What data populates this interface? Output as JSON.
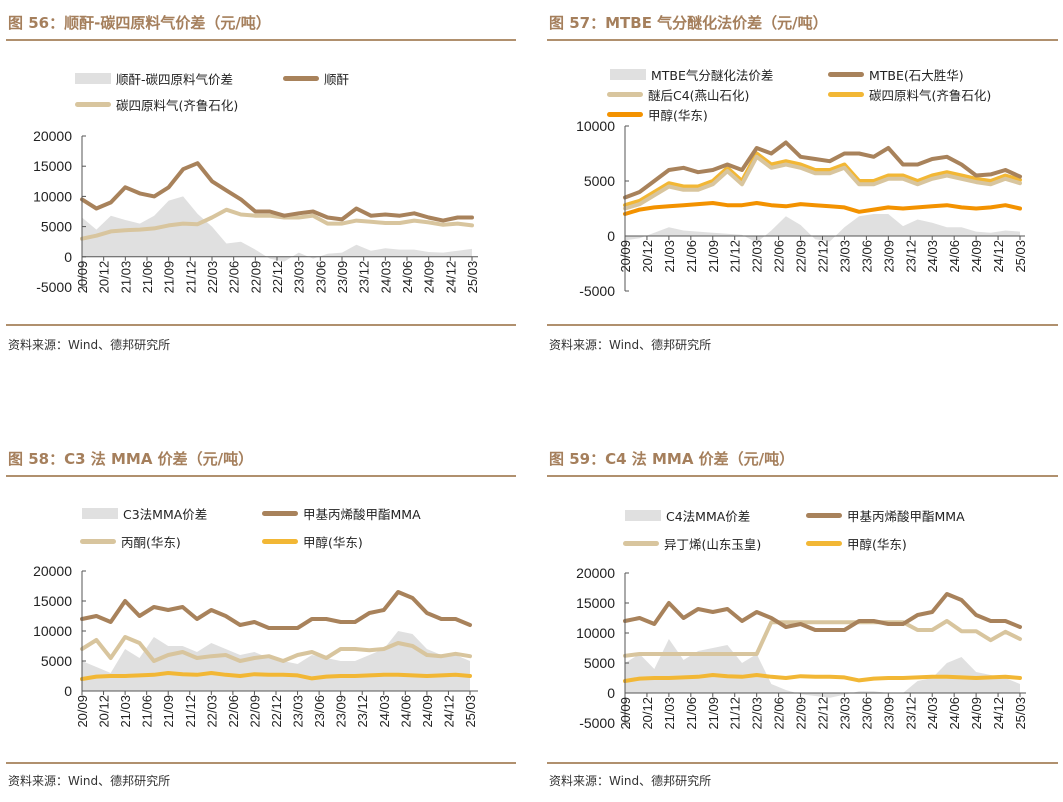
{
  "source_label": "资料来源：Wind、德邦研究所",
  "chart_data": [
    {
      "type": "line",
      "title": "图 56：顺酐-碳四原料气价差（元/吨）",
      "ylim": [
        -5000,
        20000
      ],
      "yticks": [
        "20000",
        "15000",
        "10000",
        "5000",
        "0",
        "-5000"
      ],
      "yvalues": [
        20000,
        15000,
        10000,
        5000,
        0,
        -5000
      ],
      "xticks": [
        "20/09",
        "20/12",
        "21/03",
        "21/06",
        "21/09",
        "21/12",
        "22/03",
        "22/06",
        "22/09",
        "22/12",
        "23/03",
        "23/06",
        "23/09",
        "23/12",
        "24/03",
        "24/06",
        "24/09",
        "24/12",
        "25/03"
      ],
      "x_step_months": 2,
      "series": [
        {
          "name": "顺酐-碳四原料气价差",
          "kind": "area",
          "color": "#e0e0e0",
          "values": [
            6500,
            4500,
            6800,
            6100,
            5500,
            6800,
            9300,
            10000,
            7100,
            5000,
            2200,
            2500,
            1200,
            -300,
            -800,
            700,
            -300,
            500,
            700,
            2000,
            1000,
            1400,
            1200,
            1200,
            800,
            700,
            1000,
            1300
          ]
        },
        {
          "name": "顺酐",
          "kind": "line",
          "color": "#a8825b",
          "values": [
            9500,
            8000,
            9000,
            11500,
            10500,
            10000,
            11500,
            14500,
            15500,
            12500,
            11000,
            9500,
            7500,
            7500,
            6800,
            7200,
            7500,
            6500,
            6200,
            8000,
            6800,
            7000,
            6800,
            7200,
            6500,
            6000,
            6500,
            6500
          ]
        },
        {
          "name": "碳四原料气(齐鲁石化)",
          "kind": "line",
          "color": "#d8c59e",
          "values": [
            3000,
            3500,
            4200,
            4400,
            4500,
            4700,
            5200,
            5500,
            5400,
            6500,
            7800,
            7000,
            6800,
            6800,
            6500,
            6500,
            6800,
            5500,
            5500,
            6000,
            5800,
            5600,
            5600,
            6000,
            5700,
            5300,
            5500,
            5200
          ]
        }
      ]
    },
    {
      "type": "line",
      "title": "图 57：MTBE 气分醚化法价差（元/吨）",
      "ylim": [
        -5000,
        10000
      ],
      "yticks": [
        "10000",
        "5000",
        "0",
        "-5000"
      ],
      "yvalues": [
        10000,
        5000,
        0,
        -5000
      ],
      "xticks": [
        "20/09",
        "20/12",
        "21/03",
        "21/06",
        "21/09",
        "21/12",
        "22/03",
        "22/06",
        "22/09",
        "22/12",
        "23/03",
        "23/06",
        "23/09",
        "23/12",
        "24/03",
        "24/06",
        "24/09",
        "24/12",
        "25/03"
      ],
      "x_step_months": 2,
      "series": [
        {
          "name": "MTBE气分醚化法价差",
          "kind": "area",
          "color": "#e0e0e0",
          "values": [
            -400,
            -200,
            300,
            800,
            500,
            400,
            300,
            200,
            100,
            -600,
            500,
            1800,
            1000,
            -300,
            -500,
            800,
            1800,
            2000,
            2000,
            900,
            1500,
            1200,
            800,
            800,
            400,
            300,
            500,
            400
          ]
        },
        {
          "name": "MTBE(石大胜华)",
          "kind": "line",
          "color": "#a8825b",
          "values": [
            3500,
            4000,
            5000,
            6000,
            6200,
            5800,
            6000,
            6500,
            6000,
            8000,
            7500,
            8500,
            7200,
            7000,
            6800,
            7500,
            7500,
            7200,
            8000,
            6500,
            6500,
            7000,
            7200,
            6500,
            5500,
            5600,
            6000,
            5400
          ]
        },
        {
          "name": "醚后C4(燕山石化)",
          "kind": "line",
          "color": "#d8c59e",
          "values": [
            2500,
            2900,
            3700,
            4500,
            4200,
            4200,
            4700,
            5900,
            4700,
            7200,
            6200,
            6500,
            6200,
            5700,
            5700,
            6200,
            4700,
            4700,
            5200,
            5200,
            4700,
            5200,
            5500,
            5200,
            4900,
            4700,
            5200,
            4800
          ]
        },
        {
          "name": "碳四原料气(齐鲁石化)",
          "kind": "line",
          "color": "#f2b735",
          "values": [
            2800,
            3200,
            4000,
            4800,
            4500,
            4500,
            5000,
            6200,
            5000,
            7500,
            6500,
            6800,
            6500,
            6000,
            6000,
            6500,
            5000,
            5000,
            5500,
            5500,
            5000,
            5500,
            5800,
            5500,
            5200,
            5000,
            5500,
            5100
          ]
        },
        {
          "name": "甲醇(华东)",
          "kind": "line",
          "color": "#f39200",
          "values": [
            2000,
            2400,
            2600,
            2700,
            2800,
            2900,
            3000,
            2800,
            2800,
            3000,
            2800,
            2700,
            2900,
            2800,
            2700,
            2600,
            2200,
            2400,
            2600,
            2500,
            2600,
            2700,
            2800,
            2600,
            2500,
            2600,
            2800,
            2500
          ]
        }
      ]
    },
    {
      "type": "line",
      "title": "图 58：C3 法 MMA 价差（元/吨）",
      "ylim": [
        0,
        20000
      ],
      "yticks": [
        "20000",
        "15000",
        "10000",
        "5000",
        "0"
      ],
      "yvalues": [
        20000,
        15000,
        10000,
        5000,
        0
      ],
      "xticks": [
        "20/09",
        "20/12",
        "21/03",
        "21/06",
        "21/09",
        "21/12",
        "22/03",
        "22/06",
        "22/09",
        "22/12",
        "23/03",
        "23/06",
        "23/09",
        "23/12",
        "24/03",
        "24/06",
        "24/09",
        "24/12",
        "25/03"
      ],
      "x_step_months": 2,
      "series": [
        {
          "name": "C3法MMA价差",
          "kind": "area",
          "color": "#e0e0e0",
          "values": [
            5000,
            4000,
            3000,
            7000,
            5500,
            9000,
            7500,
            7500,
            6500,
            8000,
            7000,
            6000,
            6500,
            5500,
            5000,
            4500,
            6000,
            5500,
            5000,
            5000,
            6000,
            7000,
            10000,
            9500,
            7000,
            6000,
            6000,
            5000
          ]
        },
        {
          "name": "甲基丙烯酸甲酯MMA",
          "kind": "line",
          "color": "#a8825b",
          "values": [
            12000,
            12500,
            11500,
            15000,
            12500,
            14000,
            13500,
            14000,
            12000,
            13500,
            12500,
            11000,
            11500,
            10500,
            10500,
            10500,
            12000,
            12000,
            11500,
            11500,
            13000,
            13500,
            16500,
            15500,
            13000,
            12000,
            12000,
            11000
          ]
        },
        {
          "name": "丙酮(华东)",
          "kind": "line",
          "color": "#d8c59e",
          "values": [
            7000,
            8500,
            5500,
            9000,
            8000,
            5000,
            6000,
            6500,
            5500,
            5800,
            6000,
            5000,
            5500,
            5800,
            5000,
            6000,
            6500,
            5500,
            7000,
            7000,
            6800,
            7000,
            8000,
            7500,
            6000,
            5800,
            6200,
            5800
          ]
        },
        {
          "name": "甲醇(华东)",
          "kind": "line",
          "color": "#f2b735",
          "values": [
            2000,
            2400,
            2500,
            2500,
            2600,
            2700,
            3000,
            2800,
            2700,
            3000,
            2700,
            2500,
            2800,
            2700,
            2700,
            2600,
            2100,
            2400,
            2500,
            2500,
            2600,
            2700,
            2700,
            2600,
            2500,
            2600,
            2700,
            2500
          ]
        }
      ]
    },
    {
      "type": "line",
      "title": "图 59：C4 法 MMA 价差（元/吨）",
      "ylim": [
        -5000,
        20000
      ],
      "yticks": [
        "20000",
        "15000",
        "10000",
        "5000",
        "0",
        "-5000"
      ],
      "yvalues": [
        20000,
        15000,
        10000,
        5000,
        0,
        -5000
      ],
      "xticks": [
        "20/09",
        "20/12",
        "21/03",
        "21/06",
        "21/09",
        "21/12",
        "22/03",
        "22/06",
        "22/09",
        "22/12",
        "23/03",
        "23/06",
        "23/09",
        "23/12",
        "24/03",
        "24/06",
        "24/09",
        "24/12",
        "25/03"
      ],
      "x_step_months": 2,
      "series": [
        {
          "name": "C4法MMA价差",
          "kind": "area",
          "color": "#e0e0e0",
          "values": [
            5000,
            6500,
            4000,
            9000,
            5500,
            7000,
            7500,
            8000,
            5000,
            6500,
            1500,
            500,
            -200,
            -500,
            -800,
            -300,
            300,
            300,
            0,
            0,
            2000,
            2500,
            5000,
            6000,
            3500,
            3000,
            2500,
            1500
          ]
        },
        {
          "name": "甲基丙烯酸甲酯MMA",
          "kind": "line",
          "color": "#a8825b",
          "values": [
            12000,
            12500,
            11500,
            15000,
            12500,
            14000,
            13500,
            14000,
            12000,
            13500,
            12500,
            11000,
            11500,
            10500,
            10500,
            10500,
            12000,
            12000,
            11500,
            11500,
            13000,
            13500,
            16500,
            15500,
            13000,
            12000,
            12000,
            11000
          ]
        },
        {
          "name": "异丁烯(山东玉皇)",
          "kind": "line",
          "color": "#d8c59e",
          "values": [
            6200,
            6500,
            6500,
            6500,
            6500,
            6500,
            6500,
            6500,
            6500,
            6500,
            11800,
            11800,
            11800,
            11800,
            11800,
            11800,
            11800,
            11800,
            11800,
            11800,
            10500,
            10500,
            12000,
            10300,
            10300,
            8800,
            10200,
            9000
          ]
        },
        {
          "name": "甲醇(华东)",
          "kind": "line",
          "color": "#f2b735",
          "values": [
            2000,
            2400,
            2500,
            2500,
            2600,
            2700,
            3000,
            2800,
            2700,
            3000,
            2700,
            2500,
            2800,
            2700,
            2700,
            2600,
            2100,
            2400,
            2500,
            2500,
            2600,
            2700,
            2700,
            2600,
            2500,
            2600,
            2700,
            2500
          ]
        }
      ]
    }
  ]
}
